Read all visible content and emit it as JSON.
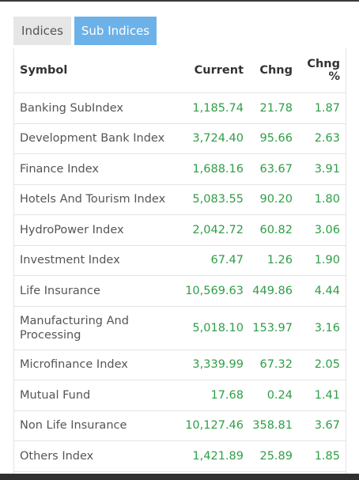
{
  "tabs": [
    {
      "label": "Indices",
      "active": false
    },
    {
      "label": "Sub Indices",
      "active": true
    }
  ],
  "table": {
    "headers": {
      "symbol": "Symbol",
      "current": "Current",
      "chng": "Chng",
      "chng_pct_line1": "Chng",
      "chng_pct_line2": "%"
    },
    "rows": [
      {
        "symbol": "Banking SubIndex",
        "current": "1,185.74",
        "chng": "21.78",
        "chng_pct": "1.87"
      },
      {
        "symbol": "Development Bank Index",
        "current": "3,724.40",
        "chng": "95.66",
        "chng_pct": "2.63"
      },
      {
        "symbol": "Finance Index",
        "current": "1,688.16",
        "chng": "63.67",
        "chng_pct": "3.91"
      },
      {
        "symbol": "Hotels And Tourism Index",
        "current": "5,083.55",
        "chng": "90.20",
        "chng_pct": "1.80"
      },
      {
        "symbol": "HydroPower Index",
        "current": "2,042.72",
        "chng": "60.82",
        "chng_pct": "3.06"
      },
      {
        "symbol": "Investment Index",
        "current": "67.47",
        "chng": "1.26",
        "chng_pct": "1.90"
      },
      {
        "symbol": "Life Insurance",
        "current": "10,569.63",
        "chng": "449.86",
        "chng_pct": "4.44"
      },
      {
        "symbol": "Manufacturing And Processing",
        "current": "5,018.10",
        "chng": "153.97",
        "chng_pct": "3.16"
      },
      {
        "symbol": "Microfinance Index",
        "current": "3,339.99",
        "chng": "67.32",
        "chng_pct": "2.05"
      },
      {
        "symbol": "Mutual Fund",
        "current": "17.68",
        "chng": "0.24",
        "chng_pct": "1.41"
      },
      {
        "symbol": "Non Life Insurance",
        "current": "10,127.46",
        "chng": "358.81",
        "chng_pct": "3.67"
      },
      {
        "symbol": "Others Index",
        "current": "1,421.89",
        "chng": "25.89",
        "chng_pct": "1.85"
      }
    ]
  },
  "colors": {
    "active_tab": "#6cb2e8",
    "inactive_tab": "#e6e6e6",
    "positive_value": "#2e9e46"
  }
}
